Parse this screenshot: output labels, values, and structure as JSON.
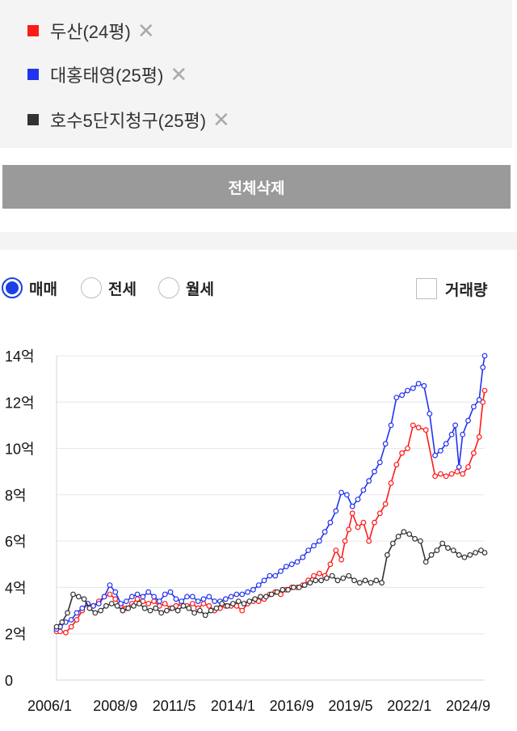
{
  "legend": {
    "items": [
      {
        "label": "두산(24평)",
        "color": "#ff1a1a"
      },
      {
        "label": "대홍태영(25평)",
        "color": "#2233ee"
      },
      {
        "label": "호수5단지청구(25평)",
        "color": "#333333"
      }
    ],
    "remove_icon": "close-icon"
  },
  "actions": {
    "delete_all": "전체삭제"
  },
  "filters": {
    "deal_types": [
      {
        "label": "매매",
        "selected": true
      },
      {
        "label": "전세",
        "selected": false
      },
      {
        "label": "월세",
        "selected": false
      }
    ],
    "volume_label": "거래량",
    "volume_checked": false
  },
  "chart_data": {
    "type": "line",
    "x_ticks": [
      "2006/1",
      "2008/9",
      "2011/5",
      "2014/1",
      "2016/9",
      "2019/5",
      "2022/1",
      "2024/9"
    ],
    "y_ticks": [
      "0",
      "2억",
      "4억",
      "6억",
      "8억",
      "10억",
      "12억",
      "14억"
    ],
    "ylim": [
      0,
      14
    ],
    "xlim": [
      "2006/1",
      "2025/6"
    ],
    "grid": true,
    "series": [
      {
        "name": "두산(24평)",
        "color": "#ff1a1a",
        "points": [
          [
            "2006/1",
            2.1
          ],
          [
            "2006/3",
            2.1
          ],
          [
            "2006/6",
            2.05
          ],
          [
            "2006/9",
            2.3
          ],
          [
            "2006/12",
            2.6
          ],
          [
            "2007/3",
            3.0
          ],
          [
            "2007/6",
            3.3
          ],
          [
            "2007/9",
            3.2
          ],
          [
            "2007/12",
            3.4
          ],
          [
            "2008/3",
            3.6
          ],
          [
            "2008/6",
            3.7
          ],
          [
            "2008/9",
            3.5
          ],
          [
            "2008/12",
            3.2
          ],
          [
            "2009/3",
            3.1
          ],
          [
            "2009/6",
            3.3
          ],
          [
            "2009/9",
            3.5
          ],
          [
            "2009/12",
            3.4
          ],
          [
            "2010/3",
            3.3
          ],
          [
            "2010/6",
            3.4
          ],
          [
            "2010/9",
            3.2
          ],
          [
            "2010/12",
            3.3
          ],
          [
            "2011/3",
            3.1
          ],
          [
            "2011/6",
            3.2
          ],
          [
            "2011/9",
            3.3
          ],
          [
            "2011/12",
            3.2
          ],
          [
            "2012/3",
            3.3
          ],
          [
            "2012/6",
            3.1
          ],
          [
            "2012/9",
            3.3
          ],
          [
            "2012/12",
            3.2
          ],
          [
            "2013/3",
            3.0
          ],
          [
            "2013/6",
            3.1
          ],
          [
            "2013/9",
            3.2
          ],
          [
            "2013/12",
            3.2
          ],
          [
            "2014/3",
            3.2
          ],
          [
            "2014/6",
            3.0
          ],
          [
            "2014/9",
            3.3
          ],
          [
            "2014/12",
            3.4
          ],
          [
            "2015/3",
            3.4
          ],
          [
            "2015/6",
            3.5
          ],
          [
            "2015/9",
            3.7
          ],
          [
            "2015/12",
            3.8
          ],
          [
            "2016/3",
            3.7
          ],
          [
            "2016/6",
            3.9
          ],
          [
            "2016/9",
            4.0
          ],
          [
            "2016/12",
            4.0
          ],
          [
            "2017/3",
            4.1
          ],
          [
            "2017/6",
            4.3
          ],
          [
            "2017/9",
            4.5
          ],
          [
            "2017/12",
            4.6
          ],
          [
            "2018/3",
            4.5
          ],
          [
            "2018/6",
            5.0
          ],
          [
            "2018/9",
            5.6
          ],
          [
            "2018/12",
            5.2
          ],
          [
            "2019/2",
            6.0
          ],
          [
            "2019/4",
            6.5
          ],
          [
            "2019/6",
            7.2
          ],
          [
            "2019/9",
            6.6
          ],
          [
            "2019/12",
            6.8
          ],
          [
            "2020/3",
            6.0
          ],
          [
            "2020/6",
            6.8
          ],
          [
            "2020/9",
            7.2
          ],
          [
            "2020/12",
            7.6
          ],
          [
            "2021/3",
            8.5
          ],
          [
            "2021/6",
            9.3
          ],
          [
            "2021/9",
            9.8
          ],
          [
            "2021/12",
            10.0
          ],
          [
            "2022/3",
            11.0
          ],
          [
            "2022/6",
            10.9
          ],
          [
            "2022/10",
            10.8
          ],
          [
            "2023/3",
            8.8
          ],
          [
            "2023/6",
            8.9
          ],
          [
            "2023/9",
            8.8
          ],
          [
            "2023/12",
            8.9
          ],
          [
            "2024/3",
            9.0
          ],
          [
            "2024/6",
            8.9
          ],
          [
            "2024/9",
            9.2
          ],
          [
            "2024/12",
            9.8
          ],
          [
            "2025/3",
            10.5
          ],
          [
            "2025/5",
            12.0
          ],
          [
            "2025/6",
            12.5
          ]
        ]
      },
      {
        "name": "대홍태영(25평)",
        "color": "#2233ee",
        "points": [
          [
            "2006/1",
            2.2
          ],
          [
            "2006/3",
            2.3
          ],
          [
            "2006/6",
            2.5
          ],
          [
            "2006/9",
            2.6
          ],
          [
            "2006/12",
            2.9
          ],
          [
            "2007/3",
            3.1
          ],
          [
            "2007/6",
            3.3
          ],
          [
            "2007/9",
            3.2
          ],
          [
            "2007/12",
            3.3
          ],
          [
            "2008/3",
            3.6
          ],
          [
            "2008/6",
            4.1
          ],
          [
            "2008/9",
            3.8
          ],
          [
            "2008/12",
            3.3
          ],
          [
            "2009/3",
            3.4
          ],
          [
            "2009/6",
            3.6
          ],
          [
            "2009/9",
            3.7
          ],
          [
            "2009/12",
            3.6
          ],
          [
            "2010/3",
            3.8
          ],
          [
            "2010/6",
            3.6
          ],
          [
            "2010/9",
            3.4
          ],
          [
            "2010/12",
            3.7
          ],
          [
            "2011/3",
            3.8
          ],
          [
            "2011/6",
            3.5
          ],
          [
            "2011/9",
            3.4
          ],
          [
            "2011/12",
            3.6
          ],
          [
            "2012/3",
            3.6
          ],
          [
            "2012/6",
            3.4
          ],
          [
            "2012/9",
            3.5
          ],
          [
            "2012/12",
            3.6
          ],
          [
            "2013/3",
            3.4
          ],
          [
            "2013/6",
            3.4
          ],
          [
            "2013/9",
            3.5
          ],
          [
            "2013/12",
            3.6
          ],
          [
            "2014/3",
            3.7
          ],
          [
            "2014/6",
            3.7
          ],
          [
            "2014/9",
            3.8
          ],
          [
            "2014/12",
            3.9
          ],
          [
            "2015/3",
            4.1
          ],
          [
            "2015/6",
            4.3
          ],
          [
            "2015/9",
            4.5
          ],
          [
            "2015/12",
            4.5
          ],
          [
            "2016/3",
            4.7
          ],
          [
            "2016/6",
            4.9
          ],
          [
            "2016/9",
            5.0
          ],
          [
            "2016/12",
            5.1
          ],
          [
            "2017/3",
            5.3
          ],
          [
            "2017/6",
            5.6
          ],
          [
            "2017/9",
            5.8
          ],
          [
            "2017/12",
            6.0
          ],
          [
            "2018/3",
            6.4
          ],
          [
            "2018/6",
            6.8
          ],
          [
            "2018/9",
            7.3
          ],
          [
            "2018/12",
            8.1
          ],
          [
            "2019/3",
            8.0
          ],
          [
            "2019/6",
            7.5
          ],
          [
            "2019/9",
            7.8
          ],
          [
            "2019/12",
            8.2
          ],
          [
            "2020/3",
            8.6
          ],
          [
            "2020/6",
            9.0
          ],
          [
            "2020/9",
            9.4
          ],
          [
            "2020/12",
            10.2
          ],
          [
            "2021/3",
            11.0
          ],
          [
            "2021/6",
            12.2
          ],
          [
            "2021/9",
            12.3
          ],
          [
            "2021/12",
            12.5
          ],
          [
            "2022/3",
            12.6
          ],
          [
            "2022/6",
            12.8
          ],
          [
            "2022/9",
            12.7
          ],
          [
            "2022/12",
            11.5
          ],
          [
            "2023/3",
            9.7
          ],
          [
            "2023/6",
            9.9
          ],
          [
            "2023/9",
            10.2
          ],
          [
            "2023/12",
            10.6
          ],
          [
            "2024/2",
            11.0
          ],
          [
            "2024/4",
            9.2
          ],
          [
            "2024/6",
            10.6
          ],
          [
            "2024/9",
            11.2
          ],
          [
            "2024/12",
            11.8
          ],
          [
            "2025/3",
            12.1
          ],
          [
            "2025/5",
            13.5
          ],
          [
            "2025/6",
            14.0
          ]
        ]
      },
      {
        "name": "호수5단지청구(25평)",
        "color": "#333333",
        "points": [
          [
            "2006/1",
            2.3
          ],
          [
            "2006/4",
            2.5
          ],
          [
            "2006/7",
            2.9
          ],
          [
            "2006/10",
            3.7
          ],
          [
            "2007/1",
            3.6
          ],
          [
            "2007/4",
            3.5
          ],
          [
            "2007/7",
            3.1
          ],
          [
            "2007/10",
            2.9
          ],
          [
            "2008/1",
            3.0
          ],
          [
            "2008/4",
            3.2
          ],
          [
            "2008/7",
            3.3
          ],
          [
            "2008/10",
            3.2
          ],
          [
            "2009/1",
            3.0
          ],
          [
            "2009/4",
            3.1
          ],
          [
            "2009/7",
            3.2
          ],
          [
            "2009/10",
            3.3
          ],
          [
            "2010/1",
            3.1
          ],
          [
            "2010/4",
            3.0
          ],
          [
            "2010/7",
            3.1
          ],
          [
            "2010/10",
            2.9
          ],
          [
            "2011/1",
            3.0
          ],
          [
            "2011/4",
            3.1
          ],
          [
            "2011/7",
            3.0
          ],
          [
            "2011/10",
            3.2
          ],
          [
            "2012/1",
            3.1
          ],
          [
            "2012/4",
            2.9
          ],
          [
            "2012/7",
            3.0
          ],
          [
            "2012/10",
            2.8
          ],
          [
            "2013/1",
            3.0
          ],
          [
            "2013/4",
            3.1
          ],
          [
            "2013/7",
            3.3
          ],
          [
            "2013/10",
            3.2
          ],
          [
            "2014/1",
            3.3
          ],
          [
            "2014/4",
            3.4
          ],
          [
            "2014/7",
            3.3
          ],
          [
            "2014/10",
            3.4
          ],
          [
            "2015/1",
            3.5
          ],
          [
            "2015/4",
            3.6
          ],
          [
            "2015/7",
            3.6
          ],
          [
            "2015/10",
            3.7
          ],
          [
            "2016/1",
            3.8
          ],
          [
            "2016/4",
            3.9
          ],
          [
            "2016/7",
            3.9
          ],
          [
            "2016/10",
            4.0
          ],
          [
            "2017/1",
            4.0
          ],
          [
            "2017/4",
            4.1
          ],
          [
            "2017/7",
            4.2
          ],
          [
            "2017/10",
            4.3
          ],
          [
            "2018/1",
            4.3
          ],
          [
            "2018/4",
            4.4
          ],
          [
            "2018/7",
            4.5
          ],
          [
            "2018/10",
            4.3
          ],
          [
            "2019/1",
            4.4
          ],
          [
            "2019/4",
            4.5
          ],
          [
            "2019/7",
            4.3
          ],
          [
            "2019/10",
            4.2
          ],
          [
            "2020/1",
            4.3
          ],
          [
            "2020/4",
            4.2
          ],
          [
            "2020/7",
            4.3
          ],
          [
            "2020/10",
            4.2
          ],
          [
            "2021/1",
            5.4
          ],
          [
            "2021/4",
            5.9
          ],
          [
            "2021/7",
            6.2
          ],
          [
            "2021/10",
            6.4
          ],
          [
            "2022/1",
            6.3
          ],
          [
            "2022/4",
            6.1
          ],
          [
            "2022/7",
            6.0
          ],
          [
            "2022/10",
            5.1
          ],
          [
            "2023/1",
            5.4
          ],
          [
            "2023/4",
            5.6
          ],
          [
            "2023/7",
            5.9
          ],
          [
            "2023/10",
            5.7
          ],
          [
            "2024/1",
            5.6
          ],
          [
            "2024/4",
            5.4
          ],
          [
            "2024/7",
            5.3
          ],
          [
            "2024/10",
            5.4
          ],
          [
            "2025/1",
            5.5
          ],
          [
            "2025/4",
            5.6
          ],
          [
            "2025/6",
            5.5
          ]
        ]
      }
    ]
  }
}
